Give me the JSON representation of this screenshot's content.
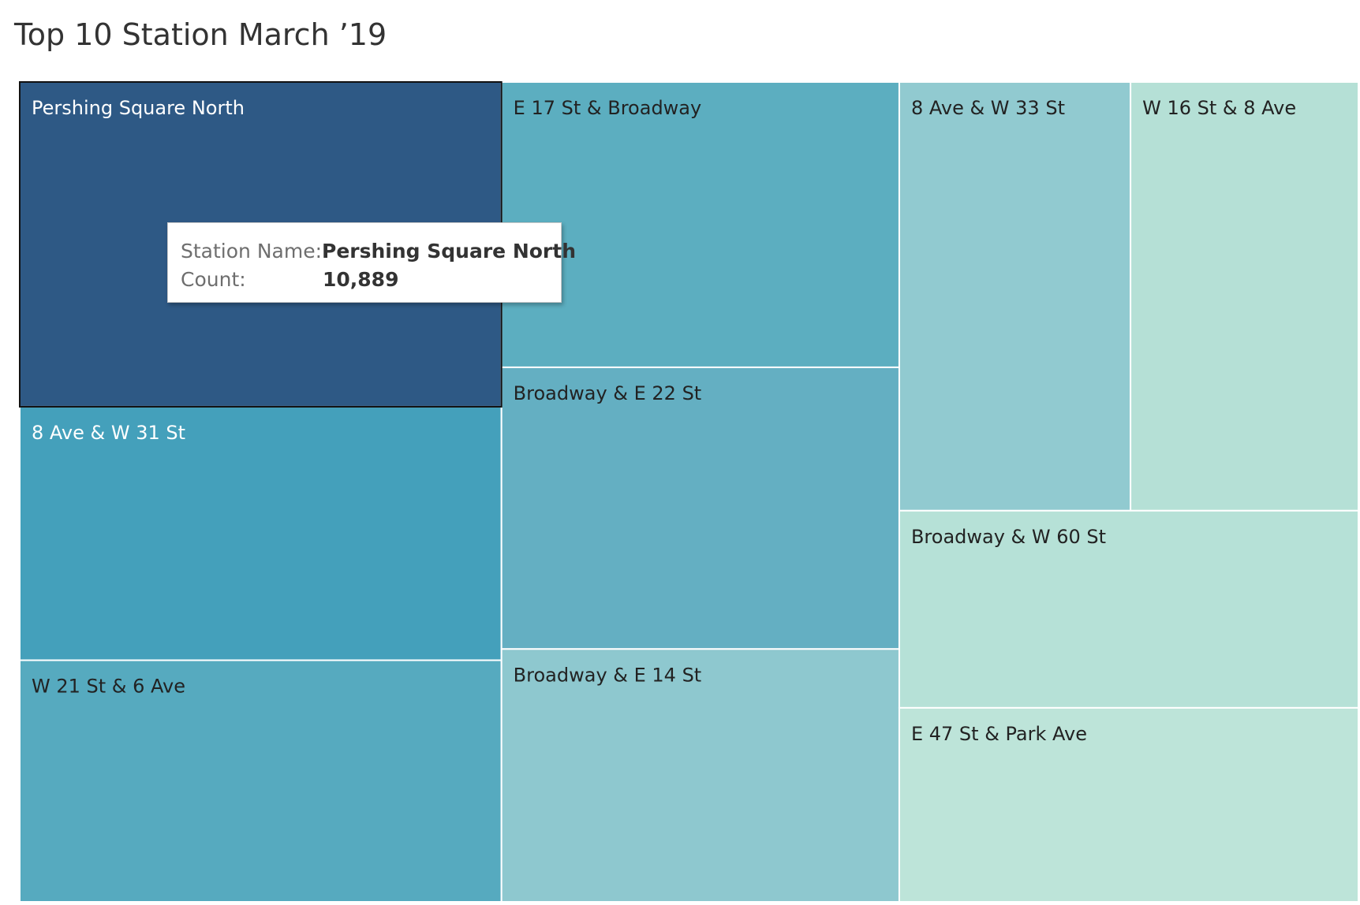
{
  "title": "Top 10 Station March ’19",
  "chart_data": {
    "type": "treemap",
    "title": "Top 10 Station March ’19",
    "measure": "Count",
    "highlighted": "Pershing Square North",
    "tiles": [
      {
        "label": "Pershing Square North",
        "value": 10889,
        "color": "#2e5985",
        "text_color": "#ffffff"
      },
      {
        "label": "8 Ave & W 31 St",
        "value": 8500,
        "color": "#44a0bb",
        "text_color": "#ffffff"
      },
      {
        "label": "W 21 St & 6 Ave",
        "value": 8100,
        "color": "#56aabf",
        "text_color": "#222222"
      },
      {
        "label": "E 17 St & Broadway",
        "value": 7900,
        "color": "#5caec0",
        "text_color": "#222222"
      },
      {
        "label": "Broadway & E 22 St",
        "value": 7800,
        "color": "#64afc2",
        "text_color": "#222222"
      },
      {
        "label": "Broadway & E 14 St",
        "value": 7000,
        "color": "#8ec8cf",
        "text_color": "#222222"
      },
      {
        "label": "8 Ave & W 33 St",
        "value": 6900,
        "color": "#91cad0",
        "text_color": "#222222"
      },
      {
        "label": "W 16 St & 8 Ave",
        "value": 6800,
        "color": "#b5e0d6",
        "text_color": "#222222"
      },
      {
        "label": "Broadway & W 60 St",
        "value": 6300,
        "color": "#b6e1d7",
        "text_color": "#222222"
      },
      {
        "label": "E 47 St & Park Ave",
        "value": 6200,
        "color": "#bde4d9",
        "text_color": "#222222"
      }
    ]
  },
  "tooltip": {
    "name_label": "Station Name:",
    "name_value": "Pershing Square North",
    "count_label": "Count:",
    "count_value": "10,889"
  }
}
